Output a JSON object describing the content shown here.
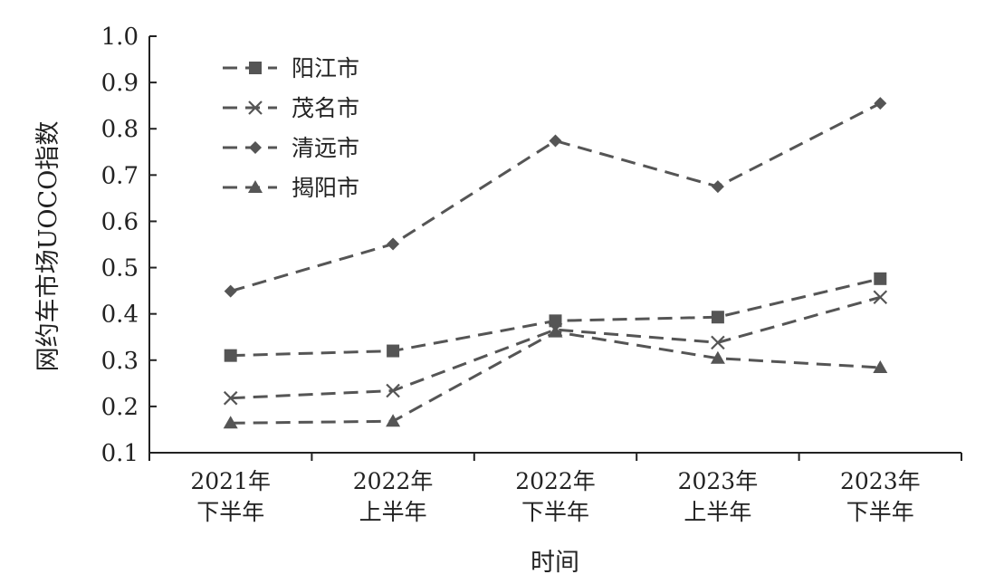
{
  "chart_data": {
    "type": "line",
    "categories": [
      [
        "2021年",
        "下半年"
      ],
      [
        "2022年",
        "上半年"
      ],
      [
        "2022年",
        "下半年"
      ],
      [
        "2023年",
        "上半年"
      ],
      [
        "2023年",
        "下半年"
      ]
    ],
    "series": [
      {
        "name": "阳江市",
        "marker": "square",
        "values": [
          0.31,
          0.32,
          0.385,
          0.393,
          0.476
        ]
      },
      {
        "name": "茂名市",
        "marker": "x",
        "values": [
          0.218,
          0.234,
          0.366,
          0.338,
          0.436
        ]
      },
      {
        "name": "清远市",
        "marker": "diamond",
        "values": [
          0.449,
          0.551,
          0.774,
          0.675,
          0.855
        ]
      },
      {
        "name": "揭阳市",
        "marker": "triangle",
        "values": [
          0.164,
          0.168,
          0.361,
          0.304,
          0.284
        ]
      }
    ],
    "ylabel": "网约车市场UOCO指数",
    "xlabel": "时间",
    "ylim": [
      0.1,
      1.0
    ],
    "yticks": [
      "0.1",
      "0.2",
      "0.3",
      "0.4",
      "0.5",
      "0.6",
      "0.7",
      "0.8",
      "0.9",
      "1.0"
    ],
    "grid": false,
    "legend_position": "top-left",
    "line_style": "dashed",
    "colors": {
      "series": "#555555",
      "axis": "#222222",
      "text": "#222222"
    }
  }
}
